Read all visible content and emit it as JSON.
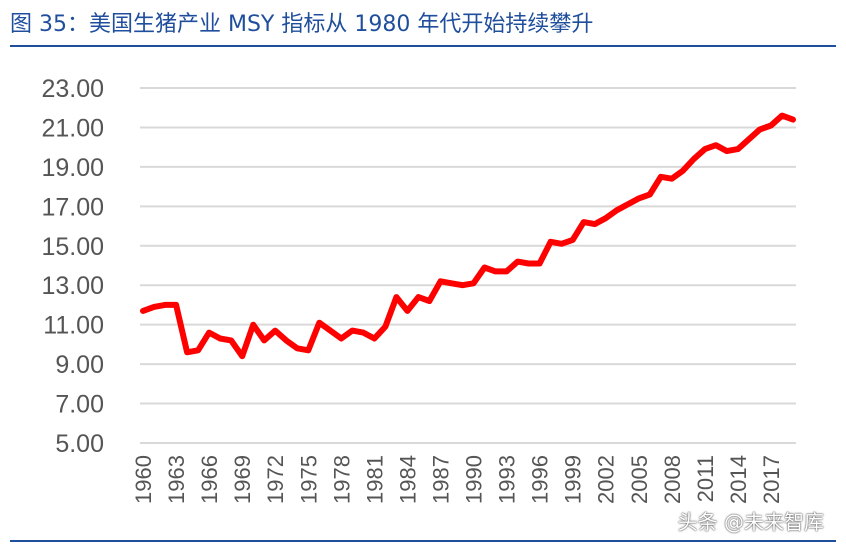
{
  "title": "图 35：美国生猪产业 MSY 指标从 1980 年代开始持续攀升",
  "watermark": "头条 @未来智库",
  "chart_data": {
    "type": "line",
    "title": "",
    "xlabel": "",
    "ylabel": "",
    "ylim": [
      5,
      23
    ],
    "yticks": [
      "5.00",
      "7.00",
      "9.00",
      "11.00",
      "13.00",
      "15.00",
      "17.00",
      "19.00",
      "21.00",
      "23.00"
    ],
    "xticks": [
      "1960",
      "1963",
      "1966",
      "1969",
      "1972",
      "1975",
      "1978",
      "1981",
      "1984",
      "1987",
      "1990",
      "1993",
      "1996",
      "1999",
      "2002",
      "2005",
      "2008",
      "2011",
      "2014",
      "2017"
    ],
    "grid": true,
    "line_color": "#ff0000",
    "x": [
      1960,
      1961,
      1962,
      1963,
      1964,
      1965,
      1966,
      1967,
      1968,
      1969,
      1970,
      1971,
      1972,
      1973,
      1974,
      1975,
      1976,
      1977,
      1978,
      1979,
      1980,
      1981,
      1982,
      1983,
      1984,
      1985,
      1986,
      1987,
      1988,
      1989,
      1990,
      1991,
      1992,
      1993,
      1994,
      1995,
      1996,
      1997,
      1998,
      1999,
      2000,
      2001,
      2002,
      2003,
      2004,
      2005,
      2006,
      2007,
      2008,
      2009,
      2010,
      2011,
      2012,
      2013,
      2014,
      2015,
      2016,
      2017,
      2018,
      2019
    ],
    "values": [
      11.7,
      11.9,
      12.0,
      12.0,
      9.6,
      9.7,
      10.6,
      10.3,
      10.2,
      9.4,
      11.0,
      10.2,
      10.7,
      10.2,
      9.8,
      9.7,
      11.1,
      10.7,
      10.3,
      10.7,
      10.6,
      10.3,
      10.9,
      12.4,
      11.7,
      12.4,
      12.2,
      13.2,
      13.1,
      13.0,
      13.1,
      13.9,
      13.7,
      13.7,
      14.2,
      14.1,
      14.1,
      15.2,
      15.1,
      15.3,
      16.2,
      16.1,
      16.4,
      16.8,
      17.1,
      17.4,
      17.6,
      18.5,
      18.4,
      18.8,
      19.4,
      19.9,
      20.1,
      19.8,
      19.9,
      20.4,
      20.9,
      21.1,
      21.6,
      21.4
    ]
  }
}
